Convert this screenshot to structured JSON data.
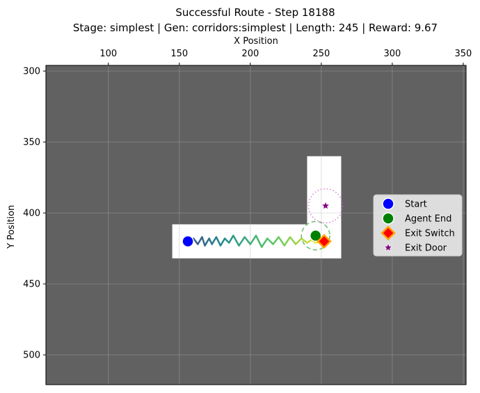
{
  "title_line1": "Successful Route - Step 18188",
  "title_line2": "Stage: simplest | Gen: corridors:simplest | Length: 245 | Reward: 9.67",
  "chart_data": {
    "type": "scatter",
    "xlabel": "X Position",
    "ylabel": "Y Position",
    "xlim": [
      56,
      352
    ],
    "ylim": [
      521,
      296
    ],
    "y_inverted": true,
    "x_axis_position": "top",
    "x_ticks": [
      100,
      150,
      200,
      250,
      300,
      350
    ],
    "y_ticks": [
      300,
      350,
      400,
      450,
      500
    ],
    "grid": true,
    "background_color": "#616161",
    "floor_color": "#ffffff",
    "floor_rects": [
      {
        "x0": 145,
        "x1": 264,
        "y0": 408,
        "y1": 432
      },
      {
        "x0": 240,
        "x1": 264,
        "y0": 360,
        "y1": 432
      }
    ],
    "trajectory": {
      "colormap": "viridis",
      "points": [
        [
          156,
          420
        ],
        [
          160,
          418
        ],
        [
          163,
          422
        ],
        [
          166,
          417
        ],
        [
          168,
          423
        ],
        [
          171,
          418
        ],
        [
          173,
          422
        ],
        [
          176,
          417
        ],
        [
          179,
          423
        ],
        [
          182,
          418
        ],
        [
          185,
          421
        ],
        [
          188,
          416
        ],
        [
          192,
          423
        ],
        [
          196,
          417
        ],
        [
          200,
          422
        ],
        [
          204,
          416
        ],
        [
          208,
          424
        ],
        [
          212,
          418
        ],
        [
          216,
          422
        ],
        [
          220,
          417
        ],
        [
          224,
          423
        ],
        [
          228,
          417
        ],
        [
          232,
          422
        ],
        [
          236,
          418
        ],
        [
          240,
          421
        ],
        [
          243,
          419
        ],
        [
          246,
          421
        ],
        [
          249,
          420
        ],
        [
          252,
          420
        ]
      ]
    },
    "markers": [
      {
        "name": "Start",
        "shape": "circle",
        "x": 156,
        "y": 420,
        "color": "#0000ff"
      },
      {
        "name": "Agent End",
        "shape": "circle",
        "x": 246,
        "y": 416,
        "color": "#008000"
      },
      {
        "name": "Exit Switch",
        "shape": "diamond",
        "x": 252,
        "y": 420,
        "color": "#ff0000",
        "edge_color": "#ffa500"
      },
      {
        "name": "Exit Door",
        "shape": "star",
        "x": 253,
        "y": 395,
        "color": "#800080"
      }
    ],
    "radius_circles": [
      {
        "x": 246,
        "y": 416,
        "r": 10,
        "color": "#4caf50",
        "style": "dashed"
      },
      {
        "x": 253,
        "y": 395,
        "r": 12,
        "color": "#cc66cc",
        "style": "dotted"
      }
    ],
    "legend": {
      "placement": "center-right",
      "entries": [
        "Start",
        "Agent End",
        "Exit Switch",
        "Exit Door"
      ]
    }
  }
}
